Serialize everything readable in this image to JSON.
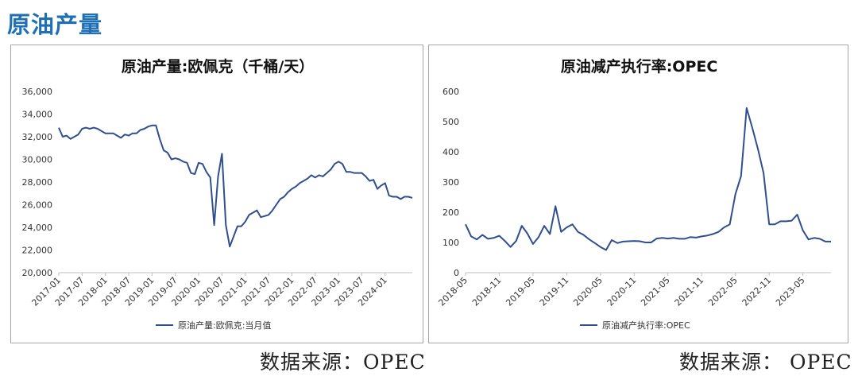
{
  "page": {
    "title": "原油产量",
    "source_left": "数据来源：OPEC",
    "source_right": "数据来源： OPEC"
  },
  "colors": {
    "line": "#2f4f8f",
    "title": "#1f6fb5",
    "axis": "#bfbfbf"
  },
  "chart_data": [
    {
      "type": "line",
      "title": "原油产量:欧佩克（千桶/天）",
      "ylim": [
        20000,
        36000
      ],
      "yticks": [
        20000,
        22000,
        24000,
        26000,
        28000,
        30000,
        32000,
        34000,
        36000
      ],
      "ytick_labels": [
        "20,000",
        "22,000",
        "24,000",
        "26,000",
        "28,000",
        "30,000",
        "32,000",
        "34,000",
        "36,000"
      ],
      "x_start": "2017-01",
      "xtick_labels": [
        "2017-01",
        "2017-07",
        "2018-01",
        "2018-07",
        "2019-01",
        "2019-07",
        "2020-01",
        "2020-07",
        "2021-01",
        "2021-07",
        "2022-01",
        "2022-07",
        "2023-01",
        "2023-07",
        "2024-01"
      ],
      "legend": "bottom",
      "series": [
        {
          "name": "原油产量:欧佩克:当月值",
          "values": [
            32800,
            32000,
            32100,
            31800,
            32000,
            32200,
            32700,
            32800,
            32700,
            32800,
            32700,
            32500,
            32300,
            32300,
            32300,
            32100,
            31900,
            32200,
            32100,
            32300,
            32300,
            32600,
            32700,
            32900,
            33000,
            33000,
            31800,
            30800,
            30600,
            30000,
            30100,
            30000,
            29800,
            29700,
            28800,
            28700,
            29700,
            29600,
            28900,
            28400,
            24200,
            28500,
            30500,
            24200,
            22300,
            23200,
            24100,
            24100,
            24500,
            25100,
            25300,
            25500,
            24900,
            25000,
            25100,
            25500,
            26000,
            26500,
            26700,
            27100,
            27400,
            27600,
            27900,
            28100,
            28300,
            28600,
            28400,
            28600,
            28500,
            28800,
            29100,
            29600,
            29800,
            29600,
            28900,
            28900,
            28800,
            28800,
            28800,
            28500,
            28100,
            28200,
            27400,
            27700,
            27900,
            26800,
            26700,
            26700,
            26500,
            26700,
            26700,
            26600
          ]
        }
      ]
    },
    {
      "type": "line",
      "title": "原油减产执行率:OPEC",
      "ylim": [
        0,
        600
      ],
      "yticks": [
        0,
        100,
        200,
        300,
        400,
        500,
        600
      ],
      "ytick_labels": [
        "0",
        "100",
        "200",
        "300",
        "400",
        "500",
        "600"
      ],
      "x_start": "2018-05",
      "xtick_labels": [
        "2018-05",
        "2018-11",
        "2019-05",
        "2019-11",
        "2020-05",
        "2020-11",
        "2021-05",
        "2021-11",
        "2022-05",
        "2022-11",
        "2023-05"
      ],
      "legend": "bottom",
      "series": [
        {
          "name": "原油减产执行率:OPEC",
          "values": [
            160,
            120,
            110,
            125,
            112,
            115,
            122,
            105,
            85,
            105,
            155,
            130,
            95,
            118,
            155,
            128,
            220,
            135,
            150,
            160,
            135,
            125,
            110,
            98,
            85,
            75,
            108,
            98,
            103,
            104,
            105,
            104,
            100,
            100,
            113,
            115,
            113,
            115,
            112,
            112,
            118,
            116,
            120,
            123,
            128,
            135,
            150,
            160,
            260,
            320,
            545,
            480,
            410,
            330,
            160,
            160,
            170,
            170,
            172,
            192,
            140,
            110,
            115,
            112,
            103,
            103
          ]
        }
      ]
    }
  ]
}
